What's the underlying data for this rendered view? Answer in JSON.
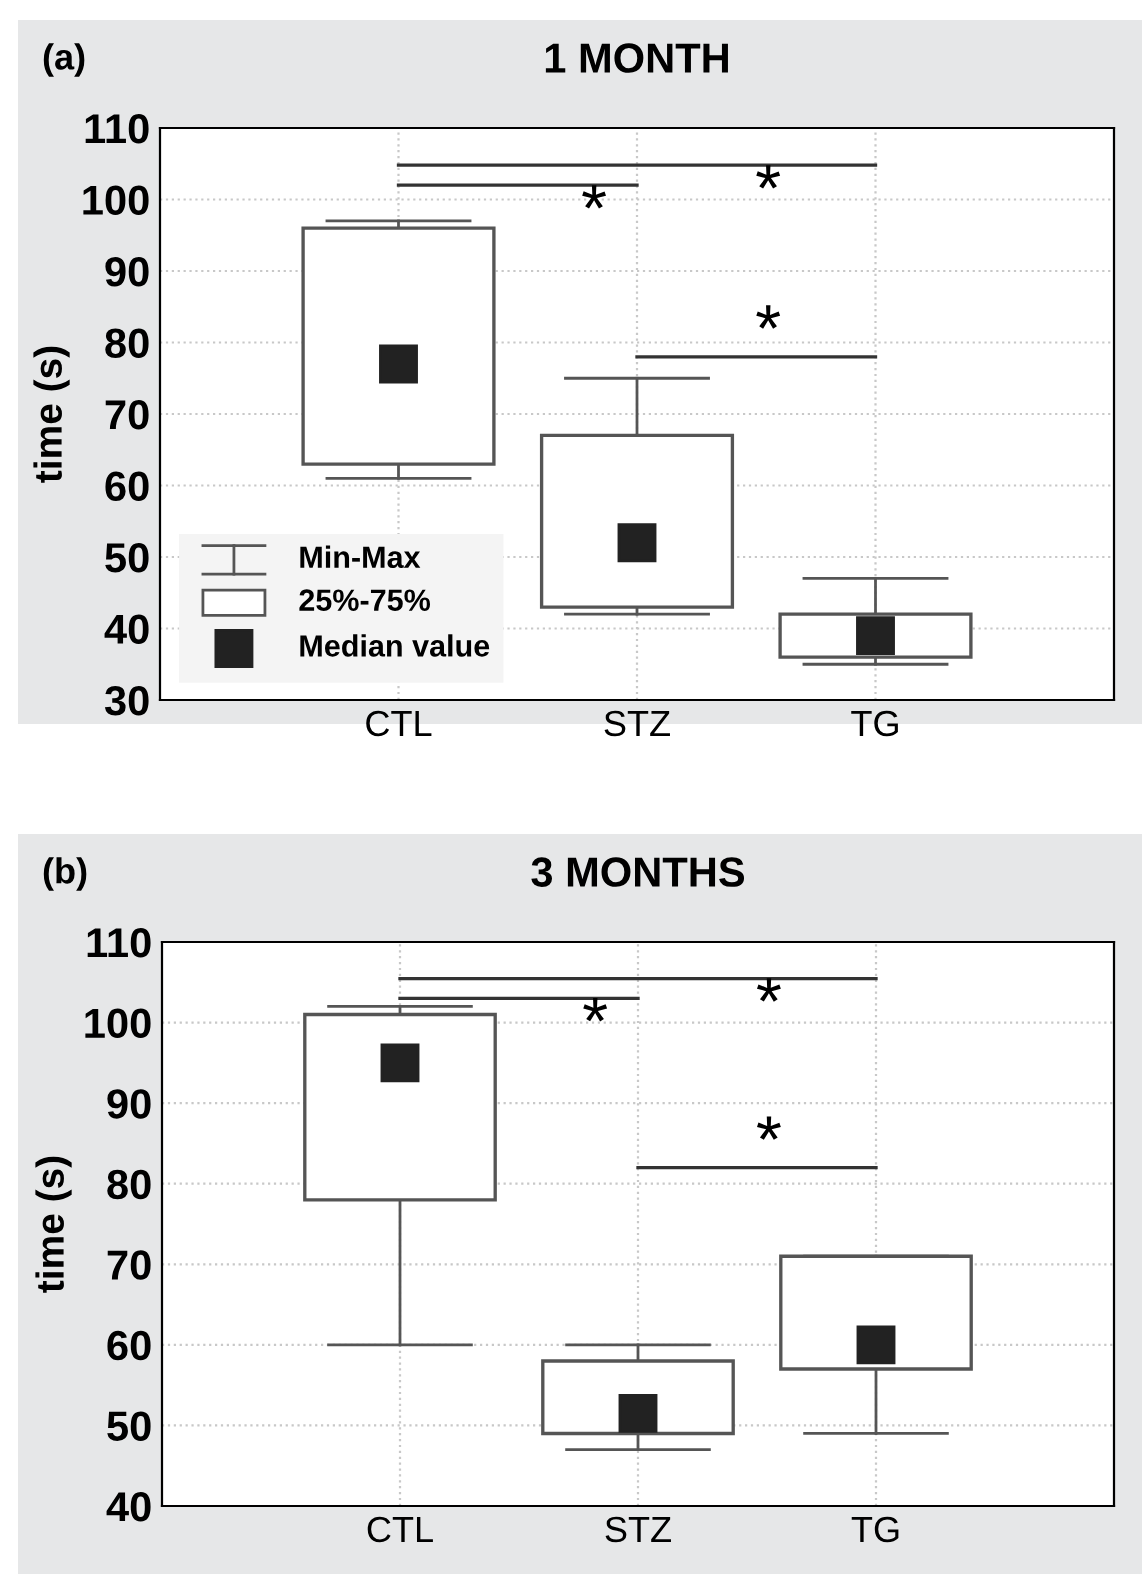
{
  "chart_data": [
    {
      "type": "box",
      "title": "1 MONTH",
      "ylabel": "time (s)",
      "categories": [
        "CTL",
        "STZ",
        "TG"
      ],
      "boxes": [
        {
          "low": 61,
          "q1": 63,
          "median": 77,
          "q3": 96,
          "high": 97
        },
        {
          "low": 42,
          "q1": 43,
          "median": 52,
          "q3": 67,
          "high": 75
        },
        {
          "low": 35,
          "q1": 36,
          "median": 39,
          "q3": 42,
          "high": 47
        }
      ],
      "ylim": [
        30,
        110
      ],
      "yticks": [
        30,
        40,
        50,
        60,
        70,
        80,
        90,
        100,
        110
      ],
      "grid": true,
      "marker": "square",
      "annotations": [
        "(a)",
        "*",
        "*",
        "*",
        "Min-Max",
        "25%-75%",
        "Median value"
      ]
    },
    {
      "type": "box",
      "title": "3 MONTHS",
      "ylabel": "time (s)",
      "categories": [
        "CTL",
        "STZ",
        "TG"
      ],
      "boxes": [
        {
          "low": 60,
          "q1": 78,
          "median": 95,
          "q3": 101,
          "high": 102
        },
        {
          "low": 47,
          "q1": 49,
          "median": 51.5,
          "q3": 58,
          "high": 60
        },
        {
          "low": 49,
          "q1": 57,
          "median": 60,
          "q3": 71,
          "high": 71
        }
      ],
      "ylim": [
        40,
        110
      ],
      "yticks": [
        40,
        50,
        60,
        70,
        80,
        90,
        100,
        110
      ],
      "grid": true,
      "marker": "square",
      "annotations": [
        "(b)",
        "*",
        "*",
        "*"
      ]
    }
  ]
}
